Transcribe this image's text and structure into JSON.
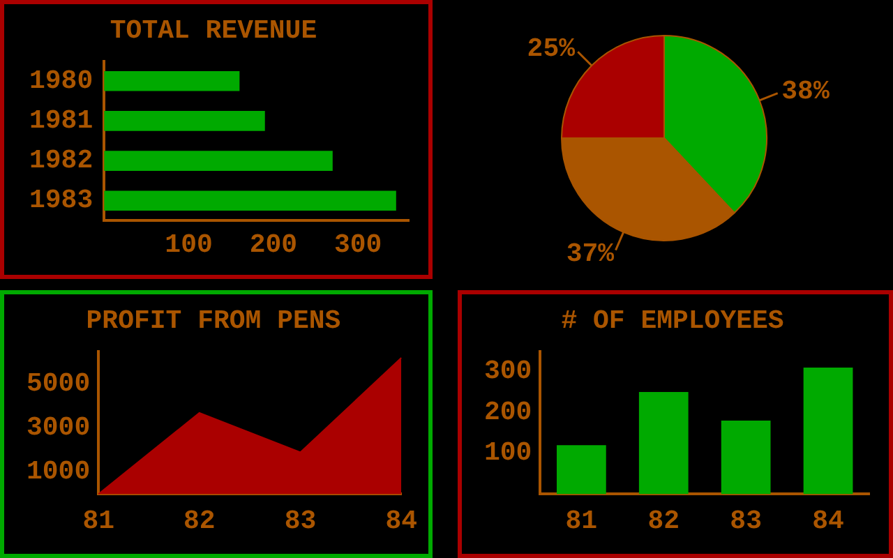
{
  "chart_data": [
    {
      "type": "bar",
      "title": "TOTAL REVENUE",
      "orientation": "horizontal",
      "categories": [
        "1980",
        "1981",
        "1982",
        "1983"
      ],
      "values": [
        160,
        190,
        270,
        345
      ],
      "color": "#00aa00",
      "xlim": [
        0,
        360
      ],
      "xticks": [
        100,
        200,
        300
      ],
      "grid": false,
      "legend": false
    },
    {
      "type": "pie",
      "categories": [
        null,
        null,
        null
      ],
      "values": [
        38,
        37,
        25
      ],
      "colors": [
        "#00aa00",
        "#aa5500",
        "#aa0000"
      ],
      "value_labels": [
        "38%",
        "37%",
        "25%"
      ],
      "legend": false
    },
    {
      "type": "area",
      "title": "PROFIT FROM PENS",
      "categories": [
        "81",
        "82",
        "83",
        "84"
      ],
      "values": [
        0,
        3700,
        1900,
        6200
      ],
      "color": "#aa0000",
      "ylim": [
        0,
        6500
      ],
      "yticks": [
        1000,
        3000,
        5000
      ],
      "grid": false,
      "legend": false
    },
    {
      "type": "bar",
      "title": "# OF EMPLOYEES",
      "categories": [
        "81",
        "82",
        "83",
        "84"
      ],
      "values": [
        120,
        250,
        180,
        310
      ],
      "color": "#00aa00",
      "ylim": [
        0,
        350
      ],
      "yticks": [
        100,
        200,
        300
      ],
      "grid": false,
      "legend": false
    }
  ]
}
